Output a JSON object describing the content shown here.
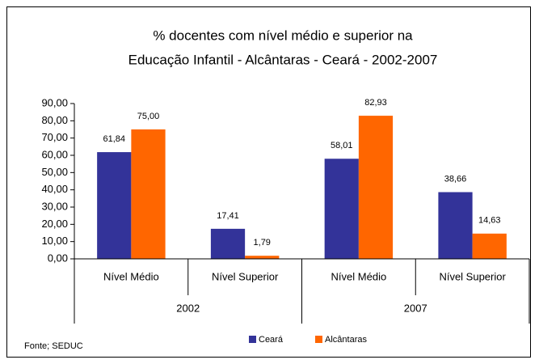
{
  "chart_data": {
    "type": "bar",
    "title": [
      "% docentes com nível médio e superior na",
      "Educação Infantil - Alcântaras -  Ceará - 2002-2007"
    ],
    "categories": [
      "Nível Médio",
      "Nível Superior",
      "Nível Médio",
      "Nível Superior"
    ],
    "groups": [
      "2002",
      "2007"
    ],
    "series": [
      {
        "name": "Ceará",
        "color": "#333399",
        "values": [
          61.84,
          17.41,
          58.01,
          38.66
        ],
        "value_labels": [
          "61,84",
          "17,41",
          "58,01",
          "38,66"
        ]
      },
      {
        "name": "Alcântaras",
        "color": "#ff6600",
        "values": [
          75.0,
          1.79,
          82.93,
          14.63
        ],
        "value_labels": [
          "75,00",
          "1,79",
          "82,93",
          "14,63"
        ]
      }
    ],
    "ylim": [
      0,
      90
    ],
    "yticks": [
      {
        "value": 0,
        "label": "0,00"
      },
      {
        "value": 10,
        "label": "10,00"
      },
      {
        "value": 20,
        "label": "20,00"
      },
      {
        "value": 30,
        "label": "30,00"
      },
      {
        "value": 40,
        "label": "40,00"
      },
      {
        "value": 50,
        "label": "50,00"
      },
      {
        "value": 60,
        "label": "60,00"
      },
      {
        "value": 70,
        "label": "70,00"
      },
      {
        "value": 80,
        "label": "80,00"
      },
      {
        "value": 90,
        "label": "90,00"
      }
    ],
    "legend": "bottom",
    "source": "Fonte; SEDUC"
  }
}
